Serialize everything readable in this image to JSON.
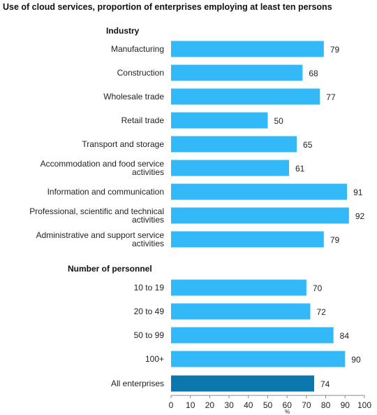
{
  "chart_data": {
    "type": "bar",
    "orientation": "horizontal",
    "title": "Use of cloud services, proportion of enterprises employing at least ten persons",
    "xlabel": "%",
    "xlim": [
      0,
      100
    ],
    "xticks": [
      "0",
      "10",
      "20",
      "30",
      "40",
      "50",
      "60",
      "70",
      "80",
      "90",
      "100"
    ],
    "colors": {
      "bar": "#33b8f8",
      "highlight": "#0b77ac"
    },
    "groups": [
      {
        "name": "Industry",
        "rows": [
          {
            "label": [
              "Manufacturing"
            ],
            "value": 79
          },
          {
            "label": [
              "Construction"
            ],
            "value": 68
          },
          {
            "label": [
              "Wholesale trade"
            ],
            "value": 77
          },
          {
            "label": [
              "Retail trade"
            ],
            "value": 50
          },
          {
            "label": [
              "Transport and storage"
            ],
            "value": 65
          },
          {
            "label": [
              "Accommodation and food service",
              "activities"
            ],
            "value": 61
          },
          {
            "label": [
              "Information and communication"
            ],
            "value": 91
          },
          {
            "label": [
              "Professional, scientific and technical",
              "activities"
            ],
            "value": 92
          },
          {
            "label": [
              "Administrative and support service",
              "activities"
            ],
            "value": 79
          }
        ]
      },
      {
        "name": "Number of personnel",
        "rows": [
          {
            "label": [
              "10 to 19"
            ],
            "value": 70
          },
          {
            "label": [
              "20 to 49"
            ],
            "value": 72
          },
          {
            "label": [
              "50 to 99"
            ],
            "value": 84
          },
          {
            "label": [
              "100+"
            ],
            "value": 90
          }
        ]
      },
      {
        "name": "",
        "rows": [
          {
            "label": [
              "All enterprises"
            ],
            "value": 74,
            "highlight": true
          }
        ]
      }
    ]
  }
}
